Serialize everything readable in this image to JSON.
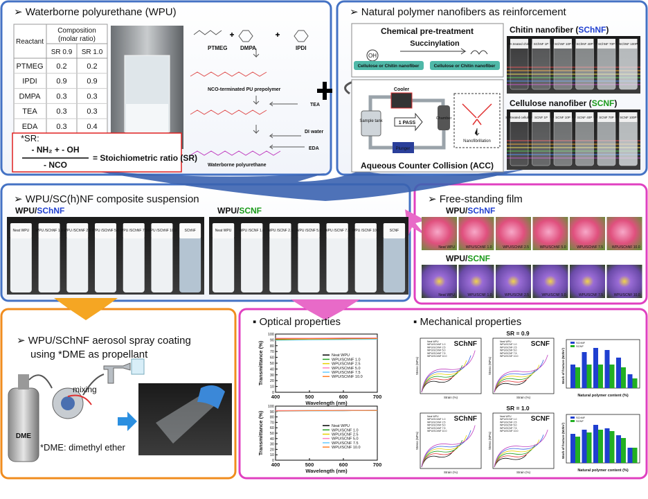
{
  "wpu": {
    "title": "➢ Waterborne polyurethane (WPU)",
    "table": {
      "header": [
        "Reactant",
        "Composition",
        "(molar ratio)"
      ],
      "subheader": [
        "SR 0.9",
        "SR 1.0"
      ],
      "rows": [
        [
          "PTMEG",
          "0.2",
          "0.2"
        ],
        [
          "IPDI",
          "0.9",
          "0.9"
        ],
        [
          "DMPA",
          "0.3",
          "0.3"
        ],
        [
          "TEA",
          "0.3",
          "0.3"
        ],
        [
          "EDA",
          "0.3",
          "0.4"
        ]
      ]
    },
    "scheme": {
      "ptmeg": "PTMEG",
      "dmpa": "DMPA",
      "ipdi": "IPDI",
      "prepolymer": "NCO-terminated PU prepolymer",
      "tea": "TEA",
      "water": "DI water",
      "eda": "EDA",
      "product": "Waterborne polyurethane"
    },
    "sr": {
      "label": "*SR:",
      "numerator": "- NH₂ + - OH",
      "denominator": "- NCO",
      "result": "= Stoichiometric ratio (SR)"
    }
  },
  "nanofiber": {
    "title": "➢ Natural polymer nanofibers as reinforcement",
    "pretreatment": {
      "title": "Chemical pre-treatment",
      "reaction": "Succinylation",
      "group": "OH",
      "before": "Cellulose or Chitin nanofiber",
      "after": "Cellulose or Chitin nanofiber"
    },
    "acc": {
      "title": "Aqueous Counter Collision (ACC)",
      "cooler": "Cooler",
      "tank": "Sample tank",
      "pass": "1 PASS",
      "chamber": "Chamber",
      "plunger": "Plunger",
      "inset": "Nanofibrillation"
    },
    "chitin": {
      "label": "Chitin nanofiber (",
      "abbr": "SChNF",
      "close": ")",
      "vials": [
        "SA treated chitin",
        "SChNF 1P",
        "SChNF 10P",
        "SChNF 40P",
        "SChNF 70P",
        "SChNF 100P"
      ]
    },
    "cellulose": {
      "label": "Cellulose nanofiber (",
      "abbr": "SCNF",
      "close": ")",
      "vials": [
        "SA treated cellulose",
        "SCNF 1P",
        "SCNF 10P",
        "SCNF 40P",
        "SCNF 70P",
        "SCNF 100P"
      ]
    }
  },
  "composite": {
    "title": "➢ WPU/SC(h)NF composite suspension",
    "groups": [
      {
        "prefix": "WPU/",
        "name": "SChNF",
        "vials": [
          "Neat WPU",
          "WPU /SChNF 1.0",
          "WPU /SChNF 2.5",
          "WPU /SChNF 5.0",
          "WPU /SChNF 7.5",
          "WPU /SChNF 10.0",
          "SChNF"
        ]
      },
      {
        "prefix": "WPU/",
        "name": "SCNF",
        "vials": [
          "Neat WPU",
          "WPU /SCNF 1.0",
          "WPU /SCNF 2.5",
          "WPU /SCNF 5.0",
          "WPU /SCNF 7.5",
          "WPU /SCNF 10.0",
          "SCNF"
        ]
      }
    ]
  },
  "film": {
    "title": "➢ Free-standing film",
    "groups": [
      {
        "prefix": "WPU/",
        "name": "SChNF",
        "photos": [
          "Neat WPU",
          "WPU/SChNF 1.0",
          "WPU/SChNF 2.5",
          "WPU/SChNF 5.0",
          "WPU/SChNF 7.5",
          "WPU/SChNF 10.0"
        ]
      },
      {
        "prefix": "WPU/",
        "name": "SCNF",
        "photos": [
          "Neat WPU",
          "WPU/SCNF 1.0",
          "WPU/SCNF 2.5",
          "WPU/SCNF 5.0",
          "WPU/SCNF 7.5",
          "WPU/SCNF 10.0"
        ]
      }
    ]
  },
  "spray": {
    "title_lines": [
      "➢ WPU/SChNF aerosol spray coating",
      "using *DME as propellant"
    ],
    "mixing": "mixing",
    "can": "DME",
    "note": "*DME: dimethyl ether"
  },
  "optical": {
    "title": "▪   Optical properties",
    "charts": [
      {
        "xlabel": "Wavelength (nm)",
        "ylabel": "Transmittance (%)",
        "xlim": [
          400,
          700
        ],
        "ylim": [
          0,
          100
        ],
        "xticks": [
          400,
          500,
          600,
          700
        ],
        "yticks": [
          0,
          10,
          20,
          30,
          40,
          50,
          60,
          70,
          80,
          90,
          100
        ],
        "x": [
          400,
          500,
          600,
          700
        ],
        "series": [
          {
            "name": "Neat WPU",
            "color": "#000000",
            "values": [
              91,
              91.5,
              91.5,
              92
            ]
          },
          {
            "name": "WPU/SChNF 1.0",
            "color": "#22a022",
            "values": [
              92,
              92.5,
              92.5,
              93
            ]
          },
          {
            "name": "WPU/SChNF 2.5",
            "color": "#e8d000",
            "values": [
              90,
              91,
              91,
              91.5
            ]
          },
          {
            "name": "WPU/SChNF 5.0",
            "color": "#ff80c0",
            "values": [
              93,
              93,
              93.5,
              93.5
            ]
          },
          {
            "name": "WPU/SChNF 7.5",
            "color": "#66ccff",
            "values": [
              89,
              90,
              90.5,
              91
            ]
          },
          {
            "name": "WPU/SChNF 10.0",
            "color": "#ff7f27",
            "values": [
              92,
              92,
              92.5,
              92.5
            ]
          }
        ]
      },
      {
        "xlabel": "Wavelength (nm)",
        "ylabel": "Transmittance (%)",
        "xlim": [
          400,
          700
        ],
        "ylim": [
          0,
          100
        ],
        "xticks": [
          400,
          500,
          600,
          700
        ],
        "yticks": [
          0,
          10,
          20,
          30,
          40,
          50,
          60,
          70,
          80,
          90,
          100
        ],
        "x": [
          400,
          500,
          600,
          700
        ],
        "series": [
          {
            "name": "Neat WPU",
            "color": "#000000",
            "values": [
              91,
              91.5,
              91.5,
              92
            ]
          },
          {
            "name": "WPU/SCNF 1.0",
            "color": "#22a022",
            "values": [
              91.5,
              92,
              92,
              92.5
            ]
          },
          {
            "name": "WPU/SCNF 2.5",
            "color": "#e8d000",
            "values": [
              91,
              91.5,
              92,
              92
            ]
          },
          {
            "name": "WPU/SCNF 5.0",
            "color": "#ff80c0",
            "values": [
              92,
              92,
              92.5,
              92.5
            ]
          },
          {
            "name": "WPU/SCNF 7.5",
            "color": "#66ccff",
            "values": [
              90.5,
              91,
              91.5,
              92
            ]
          },
          {
            "name": "WPU/SCNF 10.0",
            "color": "#ff7f27",
            "values": [
              91,
              91.5,
              92,
              92
            ]
          }
        ]
      }
    ]
  },
  "mechanical": {
    "title": "▪   Mechanical properties",
    "sr_labels": [
      "SR = 0.9",
      "SR = 1.0"
    ],
    "plot_labels": [
      "SChNF",
      "SCNF"
    ],
    "xlabel": "Strain (%)",
    "ylabel": "Stress (MPa)",
    "bar_xlabel": "Natural polymer content (%)",
    "bar_ylabel": "Work of fracture (MJ/m³)"
  }
}
